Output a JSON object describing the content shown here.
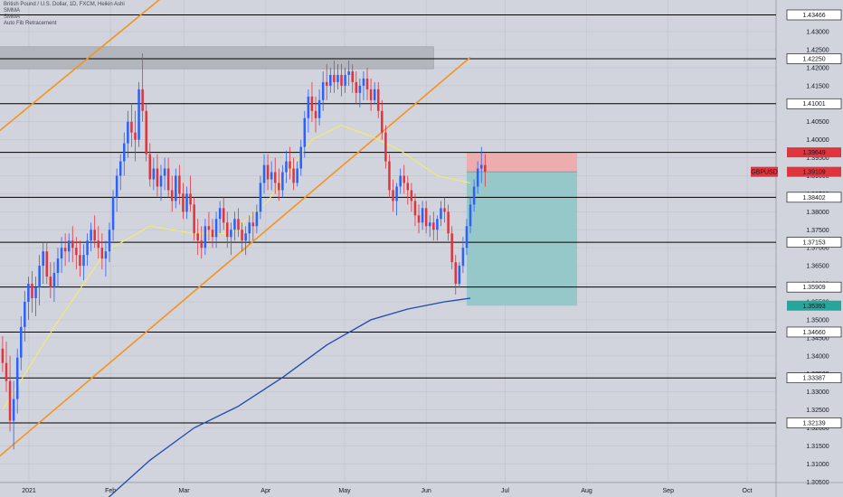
{
  "legend": {
    "title": "British Pound / U.S. Dollar, 1D, FXCM, Heikin Ashi",
    "ind1": "SMMA",
    "ind2": "SMMA",
    "ind3": "Auto Fib Retracement"
  },
  "colors": {
    "background": "#d1d4dc",
    "grid": "#c4c7cf",
    "bull": "#2962ff",
    "bear": "#e0353d",
    "smma_fast": "#f7ea6b",
    "smma_slow": "#1e4bb0",
    "channel": "#f6931e",
    "hline": "#000000",
    "stop_zone": "#f0a8a8",
    "target_zone": "#8fc7c7",
    "supply_zone": "#b4b6bd",
    "label_bg": "#ffffff",
    "gbpusd_tag": "#e0353d",
    "target_tag": "#26a69a"
  },
  "chart_data": {
    "type": "candlestick",
    "symbol_tag": "GBPUSD",
    "current_price": "1.39109",
    "x_range": [
      "2020-12-21",
      "2021-10-12"
    ],
    "ylim": [
      1.3008,
      1.4388
    ],
    "grid": true,
    "x_ticks": [
      {
        "date": "2021-01-01",
        "label": "2021"
      },
      {
        "date": "2021-02-01",
        "label": "Feb"
      },
      {
        "date": "2021-03-01",
        "label": "Mar"
      },
      {
        "date": "2021-04-01",
        "label": "Apr"
      },
      {
        "date": "2021-05-01",
        "label": "May"
      },
      {
        "date": "2021-06-01",
        "label": "Jun"
      },
      {
        "date": "2021-07-01",
        "label": "Jul"
      },
      {
        "date": "2021-08-01",
        "label": "Aug"
      },
      {
        "date": "2021-09-01",
        "label": "Sep"
      },
      {
        "date": "2021-10-01",
        "label": "Oct"
      }
    ],
    "y_ticks": [
      "1.43000",
      "1.42500",
      "1.42000",
      "1.41500",
      "1.41000",
      "1.40500",
      "1.40000",
      "1.39500",
      "1.39000",
      "1.38500",
      "1.38000",
      "1.37500",
      "1.37000",
      "1.36500",
      "1.36000",
      "1.35500",
      "1.35000",
      "1.34500",
      "1.34000",
      "1.33500",
      "1.33000",
      "1.32500",
      "1.32000",
      "1.31500",
      "1.31000",
      "1.30500"
    ],
    "levels": [
      "1.43466",
      "1.42250",
      "1.41001",
      "1.39649",
      "1.38402",
      "1.37153",
      "1.35909",
      "1.34660",
      "1.33387",
      "1.32139"
    ],
    "target_label": "1.35393",
    "candles_ohlc": [
      [
        1.342,
        1.3455,
        1.3355,
        1.338
      ],
      [
        1.338,
        1.344,
        1.33,
        1.333
      ],
      [
        1.333,
        1.34,
        1.319,
        1.322
      ],
      [
        1.322,
        1.333,
        1.314,
        1.328
      ],
      [
        1.328,
        1.342,
        1.324,
        1.3395
      ],
      [
        1.3395,
        1.351,
        1.336,
        1.348
      ],
      [
        1.348,
        1.358,
        1.344,
        1.355
      ],
      [
        1.355,
        1.362,
        1.35,
        1.36
      ],
      [
        1.36,
        1.3635,
        1.352,
        1.356
      ],
      [
        1.356,
        1.362,
        1.351,
        1.359
      ],
      [
        1.359,
        1.368,
        1.354,
        1.365
      ],
      [
        1.365,
        1.3715,
        1.36,
        1.369
      ],
      [
        1.369,
        1.3715,
        1.36,
        1.362
      ],
      [
        1.362,
        1.366,
        1.356,
        1.359
      ],
      [
        1.359,
        1.366,
        1.355,
        1.363
      ],
      [
        1.363,
        1.37,
        1.359,
        1.367
      ],
      [
        1.367,
        1.373,
        1.363,
        1.37
      ],
      [
        1.37,
        1.374,
        1.365,
        1.369
      ],
      [
        1.369,
        1.374,
        1.366,
        1.372
      ],
      [
        1.372,
        1.376,
        1.366,
        1.37
      ],
      [
        1.37,
        1.373,
        1.364,
        1.368
      ],
      [
        1.368,
        1.372,
        1.362,
        1.365
      ],
      [
        1.365,
        1.371,
        1.361,
        1.368
      ],
      [
        1.368,
        1.374,
        1.365,
        1.372
      ],
      [
        1.372,
        1.377,
        1.369,
        1.375
      ],
      [
        1.375,
        1.379,
        1.37,
        1.372
      ],
      [
        1.372,
        1.376,
        1.367,
        1.37
      ],
      [
        1.37,
        1.374,
        1.364,
        1.367
      ],
      [
        1.367,
        1.372,
        1.362,
        1.369
      ],
      [
        1.369,
        1.377,
        1.366,
        1.375
      ],
      [
        1.375,
        1.386,
        1.372,
        1.384
      ],
      [
        1.384,
        1.392,
        1.38,
        1.39
      ],
      [
        1.39,
        1.396,
        1.386,
        1.394
      ],
      [
        1.394,
        1.402,
        1.39,
        1.399
      ],
      [
        1.399,
        1.408,
        1.395,
        1.405
      ],
      [
        1.405,
        1.41,
        1.398,
        1.402
      ],
      [
        1.402,
        1.408,
        1.394,
        1.4
      ],
      [
        1.4,
        1.416,
        1.398,
        1.414
      ],
      [
        1.414,
        1.424,
        1.405,
        1.408
      ],
      [
        1.408,
        1.41,
        1.394,
        1.396
      ],
      [
        1.396,
        1.399,
        1.387,
        1.389
      ],
      [
        1.389,
        1.395,
        1.386,
        1.392
      ],
      [
        1.392,
        1.396,
        1.384,
        1.387
      ],
      [
        1.387,
        1.393,
        1.383,
        1.39
      ],
      [
        1.39,
        1.395,
        1.386,
        1.392
      ],
      [
        1.392,
        1.395,
        1.384,
        1.386
      ],
      [
        1.386,
        1.39,
        1.38,
        1.383
      ],
      [
        1.383,
        1.392,
        1.381,
        1.39
      ],
      [
        1.39,
        1.393,
        1.382,
        1.385
      ],
      [
        1.385,
        1.388,
        1.378,
        1.38
      ],
      [
        1.38,
        1.387,
        1.378,
        1.385
      ],
      [
        1.385,
        1.39,
        1.38,
        1.382
      ],
      [
        1.382,
        1.384,
        1.372,
        1.374
      ],
      [
        1.374,
        1.378,
        1.368,
        1.372
      ],
      [
        1.372,
        1.376,
        1.367,
        1.37
      ],
      [
        1.37,
        1.378,
        1.368,
        1.376
      ],
      [
        1.376,
        1.38,
        1.372,
        1.375
      ],
      [
        1.375,
        1.378,
        1.37,
        1.373
      ],
      [
        1.373,
        1.38,
        1.37,
        1.378
      ],
      [
        1.378,
        1.383,
        1.374,
        1.381
      ],
      [
        1.381,
        1.384,
        1.375,
        1.377
      ],
      [
        1.377,
        1.38,
        1.37,
        1.373
      ],
      [
        1.373,
        1.377,
        1.368,
        1.375
      ],
      [
        1.375,
        1.38,
        1.372,
        1.378
      ],
      [
        1.378,
        1.381,
        1.373,
        1.375
      ],
      [
        1.375,
        1.377,
        1.369,
        1.372
      ],
      [
        1.372,
        1.376,
        1.368,
        1.374
      ],
      [
        1.374,
        1.379,
        1.371,
        1.377
      ],
      [
        1.377,
        1.38,
        1.372,
        1.376
      ],
      [
        1.376,
        1.382,
        1.374,
        1.38
      ],
      [
        1.38,
        1.39,
        1.378,
        1.388
      ],
      [
        1.388,
        1.396,
        1.385,
        1.393
      ],
      [
        1.393,
        1.396,
        1.386,
        1.389
      ],
      [
        1.389,
        1.394,
        1.386,
        1.391
      ],
      [
        1.391,
        1.395,
        1.385,
        1.388
      ],
      [
        1.388,
        1.392,
        1.383,
        1.386
      ],
      [
        1.386,
        1.393,
        1.384,
        1.391
      ],
      [
        1.391,
        1.397,
        1.388,
        1.394
      ],
      [
        1.394,
        1.398,
        1.389,
        1.392
      ],
      [
        1.392,
        1.395,
        1.386,
        1.388
      ],
      [
        1.388,
        1.394,
        1.387,
        1.392
      ],
      [
        1.392,
        1.4,
        1.39,
        1.398
      ],
      [
        1.398,
        1.408,
        1.395,
        1.406
      ],
      [
        1.406,
        1.414,
        1.402,
        1.412
      ],
      [
        1.412,
        1.416,
        1.405,
        1.408
      ],
      [
        1.408,
        1.412,
        1.402,
        1.406
      ],
      [
        1.406,
        1.414,
        1.404,
        1.411
      ],
      [
        1.411,
        1.419,
        1.408,
        1.416
      ],
      [
        1.416,
        1.421,
        1.411,
        1.415
      ],
      [
        1.415,
        1.42,
        1.413,
        1.418
      ],
      [
        1.418,
        1.422,
        1.413,
        1.416
      ],
      [
        1.416,
        1.421,
        1.414,
        1.418
      ],
      [
        1.418,
        1.421,
        1.412,
        1.415
      ],
      [
        1.415,
        1.42,
        1.413,
        1.418
      ],
      [
        1.418,
        1.422,
        1.415,
        1.419
      ],
      [
        1.419,
        1.421,
        1.413,
        1.416
      ],
      [
        1.416,
        1.419,
        1.41,
        1.413
      ],
      [
        1.413,
        1.417,
        1.409,
        1.415
      ],
      [
        1.415,
        1.419,
        1.411,
        1.417
      ],
      [
        1.417,
        1.42,
        1.411,
        1.414
      ],
      [
        1.414,
        1.417,
        1.408,
        1.411
      ],
      [
        1.411,
        1.416,
        1.41,
        1.414
      ],
      [
        1.414,
        1.416,
        1.406,
        1.408
      ],
      [
        1.408,
        1.411,
        1.4,
        1.402
      ],
      [
        1.402,
        1.404,
        1.392,
        1.394
      ],
      [
        1.394,
        1.396,
        1.384,
        1.386
      ],
      [
        1.386,
        1.389,
        1.38,
        1.383
      ],
      [
        1.383,
        1.388,
        1.379,
        1.387
      ],
      [
        1.387,
        1.392,
        1.385,
        1.39
      ],
      [
        1.39,
        1.393,
        1.385,
        1.388
      ],
      [
        1.388,
        1.39,
        1.382,
        1.386
      ],
      [
        1.386,
        1.388,
        1.38,
        1.383
      ],
      [
        1.383,
        1.385,
        1.376,
        1.379
      ],
      [
        1.379,
        1.382,
        1.374,
        1.377
      ],
      [
        1.377,
        1.383,
        1.375,
        1.381
      ],
      [
        1.381,
        1.383,
        1.374,
        1.376
      ],
      [
        1.376,
        1.379,
        1.373,
        1.377
      ],
      [
        1.377,
        1.38,
        1.372,
        1.375
      ],
      [
        1.375,
        1.379,
        1.372,
        1.378
      ],
      [
        1.378,
        1.383,
        1.376,
        1.381
      ],
      [
        1.381,
        1.384,
        1.377,
        1.38
      ],
      [
        1.38,
        1.382,
        1.372,
        1.374
      ],
      [
        1.374,
        1.376,
        1.364,
        1.366
      ],
      [
        1.366,
        1.368,
        1.357,
        1.36
      ],
      [
        1.36,
        1.366,
        1.359,
        1.365
      ],
      [
        1.365,
        1.373,
        1.363,
        1.37
      ],
      [
        1.37,
        1.378,
        1.368,
        1.376
      ],
      [
        1.376,
        1.384,
        1.374,
        1.382
      ],
      [
        1.382,
        1.389,
        1.38,
        1.387
      ],
      [
        1.387,
        1.394,
        1.385,
        1.392
      ],
      [
        1.392,
        1.398,
        1.388,
        1.393
      ],
      [
        1.393,
        1.396,
        1.387,
        1.3911
      ]
    ],
    "smma_fast": [
      [
        0,
        1.325
      ],
      [
        14,
        1.348
      ],
      [
        28,
        1.369
      ],
      [
        40,
        1.376
      ],
      [
        52,
        1.374
      ],
      [
        62,
        1.374
      ],
      [
        72,
        1.383
      ],
      [
        84,
        1.4
      ],
      [
        92,
        1.404
      ],
      [
        100,
        1.401
      ],
      [
        108,
        1.397
      ],
      [
        118,
        1.39
      ],
      [
        127,
        1.388
      ]
    ],
    "smma_slow": [
      [
        28,
        1.3
      ],
      [
        40,
        1.311
      ],
      [
        52,
        1.32
      ],
      [
        64,
        1.326
      ],
      [
        76,
        1.334
      ],
      [
        88,
        1.343
      ],
      [
        100,
        1.35
      ],
      [
        110,
        1.353
      ],
      [
        120,
        1.355
      ],
      [
        127,
        1.356
      ]
    ],
    "channel_upper": [
      [
        -2,
        1.4015
      ],
      [
        49,
        1.4443
      ]
    ],
    "channel_lower": [
      [
        -2,
        1.3111
      ],
      [
        127,
        1.4229
      ]
    ],
    "supply_zone": {
      "x0": -2,
      "x1": 117,
      "y0": 1.4197,
      "y1": 1.4258
    },
    "position": {
      "x0": 126,
      "x1": 156,
      "stop": 1.39649,
      "entry": 1.39109,
      "target": 1.35393
    }
  }
}
